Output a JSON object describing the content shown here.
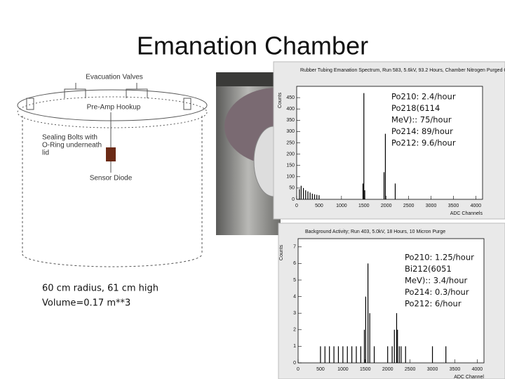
{
  "title": "Emanation Chamber",
  "diagram": {
    "labels": [
      "Evacuation Valves",
      "Pre-Amp Hookup",
      "Sealing Bolts with",
      "O-Ring underneath",
      "lid",
      "Sensor Diode"
    ]
  },
  "caption": [
    "60 cm radius, 61 cm high",
    "Volume=0.17 m**3"
  ],
  "chart_data": [
    {
      "type": "bar",
      "title": "Rubber Tubing Emanation Spectrum, Run 583, 5.6kV, 93.2 Hours, Chamber Nitrogen Purged Once",
      "x_label": "ADC Channels",
      "y_label": "Counts",
      "annotation": [
        "Po210: 2.4/hour",
        "Po218(6114",
        "MeV):: 75/hour",
        "Po214: 89/hour",
        "Po212: 9.6/hour"
      ],
      "x": [
        60,
        100,
        150,
        200,
        250,
        300,
        350,
        400,
        450,
        500,
        1480,
        1500,
        1520,
        1950,
        1980,
        2200
      ],
      "values": [
        45,
        60,
        50,
        40,
        35,
        30,
        25,
        22,
        20,
        18,
        70,
        470,
        40,
        120,
        290,
        70
      ],
      "color": "#000000",
      "xlim": [
        0,
        4150
      ],
      "xticks": [
        0,
        500,
        1000,
        1500,
        2000,
        2500,
        3000,
        3500,
        4000
      ],
      "ylim": [
        0,
        500
      ],
      "yticks": [
        0,
        50,
        100,
        150,
        200,
        250,
        300,
        350,
        400,
        450
      ]
    },
    {
      "type": "bar",
      "title": "Background Activity; Run 403, 5.0kV, 18 Hours, 10 Micron Purge",
      "x_label": "ADC Channel",
      "y_label": "Counts",
      "annotation": [
        "Po210: 1.25/hour",
        "Bi212(6051",
        "MeV):: 3.4/hour",
        "Po214: 0.3/hour",
        "Po212: 6/hour"
      ],
      "x": [
        500,
        600,
        700,
        800,
        900,
        1000,
        1100,
        1200,
        1300,
        1400,
        1480,
        1510,
        1560,
        1600,
        1700,
        2000,
        2100,
        2150,
        2200,
        2220,
        2260,
        2300,
        2400,
        3000,
        3300
      ],
      "values": [
        1,
        1,
        1,
        1,
        1,
        1,
        1,
        1,
        1,
        1,
        2,
        4,
        6,
        3,
        1,
        1,
        1,
        2,
        3,
        2,
        1,
        1,
        1,
        1,
        1
      ],
      "color": "#000000",
      "xlim": [
        0,
        4150
      ],
      "xticks": [
        0,
        500,
        1000,
        1500,
        2000,
        2500,
        3000,
        3500,
        4000
      ],
      "ylim": [
        0,
        7.5
      ],
      "yticks": [
        0,
        1,
        2,
        3,
        4,
        5,
        6,
        7
      ]
    }
  ]
}
